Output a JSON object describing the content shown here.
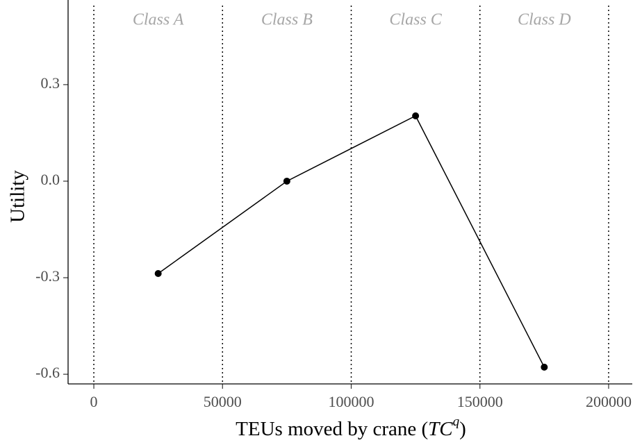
{
  "chart_data": {
    "type": "line",
    "x_label": [
      "TEUs moved by crane (",
      "TC",
      "q",
      ")"
    ],
    "y_label": "Utility",
    "annotations": [
      "Class A",
      "Class B",
      "Class C",
      "Class D"
    ],
    "x": [
      25000,
      75000,
      125000,
      175000
    ],
    "series": [
      {
        "color": "#000000",
        "values": [
          -0.287,
          0,
          0.203,
          -0.578
        ]
      }
    ],
    "xlim": [
      -10000,
      210000
    ],
    "ylim": [
      -0.63,
      0.563
    ],
    "xticks": [
      0,
      50000,
      100000,
      150000,
      200000
    ],
    "yticks": [
      0.3,
      {
        "value": 0,
        "label": "0.0"
      },
      -0.3,
      -0.6
    ],
    "grid": true
  }
}
